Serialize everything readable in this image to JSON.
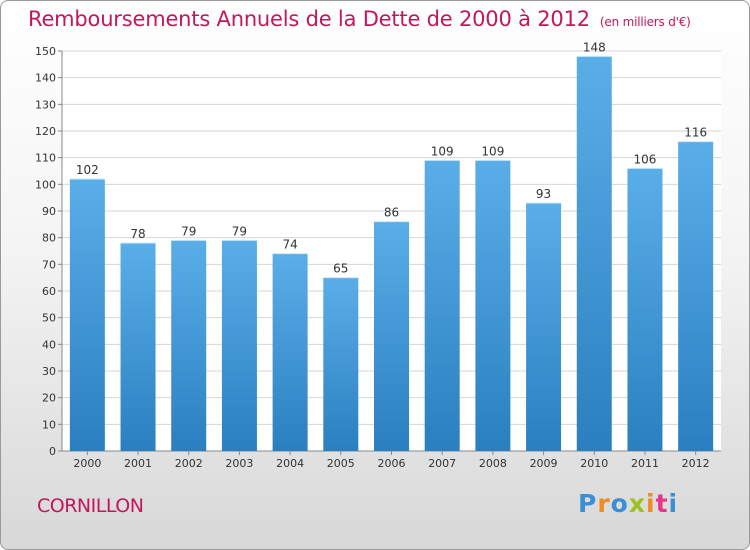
{
  "chart_data": {
    "type": "bar",
    "title": "Remboursements Annuels de la Dette de 2000 à 2012",
    "subtitle": "(en milliers d'€)",
    "categories": [
      "2000",
      "2001",
      "2002",
      "2003",
      "2004",
      "2005",
      "2006",
      "2007",
      "2008",
      "2009",
      "2010",
      "2011",
      "2012"
    ],
    "values": [
      102,
      78,
      79,
      79,
      74,
      65,
      86,
      109,
      109,
      93,
      148,
      106,
      116
    ],
    "ylim": [
      0,
      150
    ],
    "yticks": [
      0,
      10,
      20,
      30,
      40,
      50,
      60,
      70,
      80,
      90,
      100,
      110,
      120,
      130,
      140,
      150
    ],
    "xlabel": "",
    "ylabel": "",
    "grid": true,
    "bar_color_top": "#5aaee8",
    "bar_color_bottom": "#2a7fc0"
  },
  "commune": "CORNILLON",
  "logo": {
    "letters": [
      "P",
      "r",
      "o",
      "x",
      "i",
      "t",
      "i"
    ],
    "colors": [
      "#3a8fd6",
      "#f28c1e",
      "#3a8fd6",
      "#9cc31c",
      "#f28c1e",
      "#e8338a",
      "#3a8fd6"
    ]
  }
}
